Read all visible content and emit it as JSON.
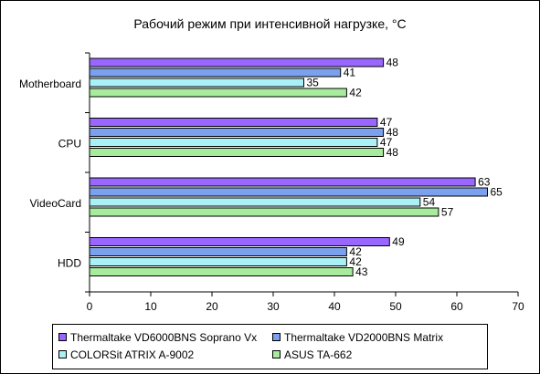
{
  "chart_data": {
    "type": "bar",
    "orientation": "horizontal",
    "title": "Рабочий режим при интенсивной нагрузке, °C",
    "categories": [
      "Motherboard",
      "CPU",
      "VideoCard",
      "HDD"
    ],
    "series": [
      {
        "name": "Thermaltake VD6000BNS Soprano Vx",
        "color": "#9966ff",
        "values": [
          48,
          47,
          63,
          49
        ]
      },
      {
        "name": "Thermaltake VD2000BNS Matrix",
        "color": "#7aa0ee",
        "values": [
          41,
          48,
          65,
          42
        ]
      },
      {
        "name": "COLORSit ATRIX A-9002",
        "color": "#aaf0f7",
        "values": [
          35,
          47,
          54,
          42
        ]
      },
      {
        "name": "ASUS TA-662",
        "color": "#a6ec9c",
        "values": [
          42,
          48,
          57,
          43
        ]
      }
    ],
    "xlim": [
      0,
      70
    ],
    "xticks": [
      0,
      10,
      20,
      30,
      40,
      50,
      60,
      70
    ],
    "grid": false,
    "legend": "bottom"
  }
}
